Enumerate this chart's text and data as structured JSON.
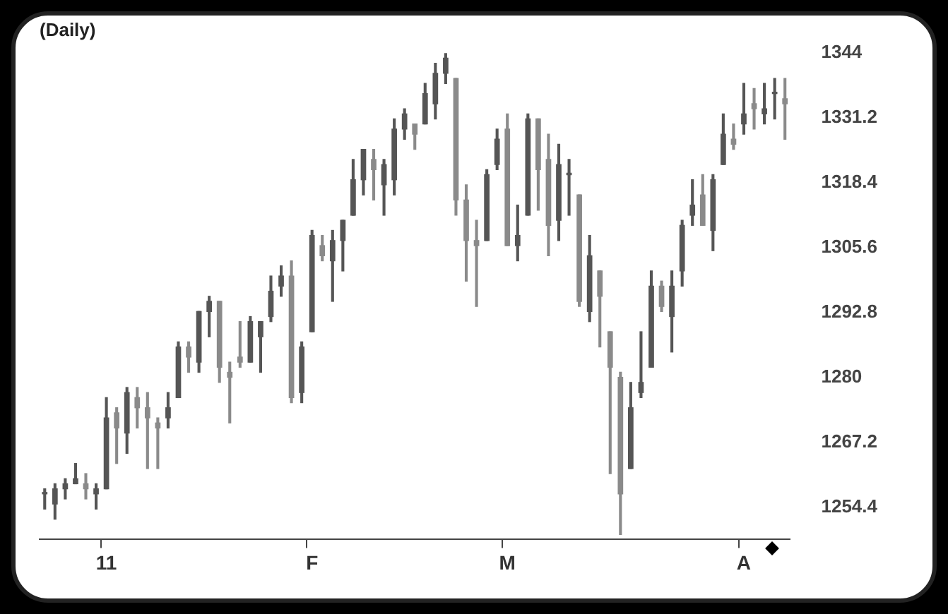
{
  "chart_data": {
    "type": "candlestick",
    "title": "(Daily)",
    "categories": [
      null,
      null,
      null,
      null,
      null,
      null,
      "11",
      null,
      null,
      null,
      null,
      null,
      null,
      null,
      null,
      null,
      null,
      null,
      null,
      null,
      null,
      null,
      null,
      null,
      null,
      null,
      "F",
      null,
      null,
      null,
      null,
      null,
      null,
      null,
      null,
      null,
      null,
      null,
      null,
      null,
      null,
      null,
      null,
      null,
      null,
      "M",
      null,
      null,
      null,
      null,
      null,
      null,
      null,
      null,
      null,
      null,
      null,
      null,
      null,
      null,
      null,
      null,
      null,
      null,
      null,
      null,
      null,
      null,
      "A",
      null,
      null,
      null,
      null
    ],
    "colors": [
      "#555555",
      "#555555",
      "#555555",
      "#555555",
      "#8a8a8a",
      "#555555",
      "#555555",
      "#8a8a8a",
      "#555555",
      "#8a8a8a",
      "#8a8a8a",
      "#8a8a8a",
      "#555555",
      "#555555",
      "#8a8a8a",
      "#555555",
      "#555555",
      "#8a8a8a",
      "#8a8a8a",
      "#8a8a8a",
      "#555555",
      "#555555",
      "#555555",
      "#555555",
      "#8a8a8a",
      "#555555",
      "#555555",
      "#8a8a8a",
      "#555555",
      "#555555",
      "#555555",
      "#555555",
      "#8a8a8a",
      "#555555",
      "#555555",
      "#555555",
      "#8a8a8a",
      "#555555",
      "#555555",
      "#555555",
      "#8a8a8a",
      "#8a8a8a",
      "#8a8a8a",
      "#555555",
      "#555555",
      "#8a8a8a",
      "#555555",
      "#555555",
      "#8a8a8a",
      "#8a8a8a",
      "#555555",
      "#555555",
      "#8a8a8a",
      "#555555",
      "#8a8a8a",
      "#8a8a8a",
      "#8a8a8a",
      "#555555",
      "#555555",
      "#555555",
      "#8a8a8a",
      "#555555",
      "#555555",
      "#555555",
      "#8a8a8a",
      "#555555",
      "#555555",
      "#8a8a8a",
      "#555555",
      "#8a8a8a",
      "#555555",
      "#555555",
      "#8a8a8a"
    ],
    "ohlc": [
      [
        1257,
        1258,
        1254,
        1257
      ],
      [
        1255,
        1259,
        1252,
        1258
      ],
      [
        1258,
        1260,
        1256,
        1259
      ],
      [
        1259,
        1263,
        1259,
        1260
      ],
      [
        1259,
        1261,
        1256,
        1258
      ],
      [
        1257,
        1259,
        1254,
        1258
      ],
      [
        1258,
        1276,
        1258,
        1272
      ],
      [
        1273,
        1274,
        1263,
        1270
      ],
      [
        1269,
        1278,
        1265,
        1277
      ],
      [
        1276,
        1278,
        1270,
        1274
      ],
      [
        1274,
        1277,
        1262,
        1272
      ],
      [
        1271,
        1272,
        1262,
        1270
      ],
      [
        1272,
        1277,
        1270,
        1274
      ],
      [
        1276,
        1287,
        1276,
        1286
      ],
      [
        1286,
        1287,
        1281,
        1284
      ],
      [
        1283,
        1293,
        1281,
        1293
      ],
      [
        1293,
        1296,
        1288,
        1295
      ],
      [
        1295,
        1295,
        1279,
        1282
      ],
      [
        1281,
        1283,
        1271,
        1280
      ],
      [
        1284,
        1291,
        1282,
        1283
      ],
      [
        1283,
        1292,
        1283,
        1291
      ],
      [
        1288,
        1291,
        1281,
        1291
      ],
      [
        1292,
        1300,
        1291,
        1297
      ],
      [
        1298,
        1302,
        1296,
        1300
      ],
      [
        1300,
        1303,
        1275,
        1276
      ],
      [
        1277,
        1287,
        1275,
        1286
      ],
      [
        1289,
        1309,
        1289,
        1308
      ],
      [
        1306,
        1308,
        1303,
        1304
      ],
      [
        1303,
        1309,
        1295,
        1307
      ],
      [
        1307,
        1311,
        1301,
        1311
      ],
      [
        1312,
        1323,
        1312,
        1319
      ],
      [
        1319,
        1325,
        1316,
        1325
      ],
      [
        1323,
        1325,
        1315,
        1321
      ],
      [
        1318,
        1323,
        1312,
        1322
      ],
      [
        1319,
        1331,
        1316,
        1329
      ],
      [
        1329,
        1333,
        1327,
        1332
      ],
      [
        1330,
        1330,
        1325,
        1328
      ],
      [
        1330,
        1338,
        1330,
        1336
      ],
      [
        1334,
        1342,
        1331,
        1340
      ],
      [
        1340,
        1344,
        1338,
        1343
      ],
      [
        1339,
        1339,
        1312,
        1315
      ],
      [
        1315,
        1318,
        1299,
        1307
      ],
      [
        1307,
        1311,
        1294,
        1306
      ],
      [
        1307,
        1321,
        1307,
        1320
      ],
      [
        1322,
        1329,
        1321,
        1327
      ],
      [
        1329,
        1332,
        1306,
        1306
      ],
      [
        1306,
        1314,
        1303,
        1308
      ],
      [
        1312,
        1332,
        1312,
        1331
      ],
      [
        1331,
        1331,
        1313,
        1321
      ],
      [
        1323,
        1328,
        1304,
        1310
      ],
      [
        1311,
        1326,
        1307,
        1322
      ],
      [
        1320,
        1323,
        1312,
        1320
      ],
      [
        1316,
        1316,
        1294,
        1295
      ],
      [
        1293,
        1308,
        1291,
        1304
      ],
      [
        1301,
        1301,
        1286,
        1296
      ],
      [
        1289,
        1289,
        1261,
        1282
      ],
      [
        1280,
        1281,
        1249,
        1257
      ],
      [
        1262,
        1279,
        1262,
        1274
      ],
      [
        1277,
        1289,
        1276,
        1279
      ],
      [
        1282,
        1301,
        1282,
        1298
      ],
      [
        1298,
        1299,
        1293,
        1294
      ],
      [
        1292,
        1301,
        1285,
        1298
      ],
      [
        1301,
        1311,
        1298,
        1310
      ],
      [
        1312,
        1319,
        1310,
        1314
      ],
      [
        1316,
        1320,
        1310,
        1310
      ],
      [
        1309,
        1320,
        1305,
        1319
      ],
      [
        1322,
        1332,
        1322,
        1328
      ],
      [
        1327,
        1330,
        1325,
        1326
      ],
      [
        1330,
        1338,
        1328,
        1332
      ],
      [
        1334,
        1337,
        1329,
        1333
      ],
      [
        1332,
        1338,
        1330,
        1333
      ],
      [
        1336,
        1339,
        1331,
        1336
      ],
      [
        1335,
        1339,
        1327,
        1334
      ]
    ],
    "ylim": [
      1248,
      1344
    ],
    "yticks": [
      1254.4,
      1267.2,
      1280,
      1292.8,
      1305.6,
      1318.4,
      1331.2,
      1344
    ],
    "grid": false,
    "legend": false
  }
}
